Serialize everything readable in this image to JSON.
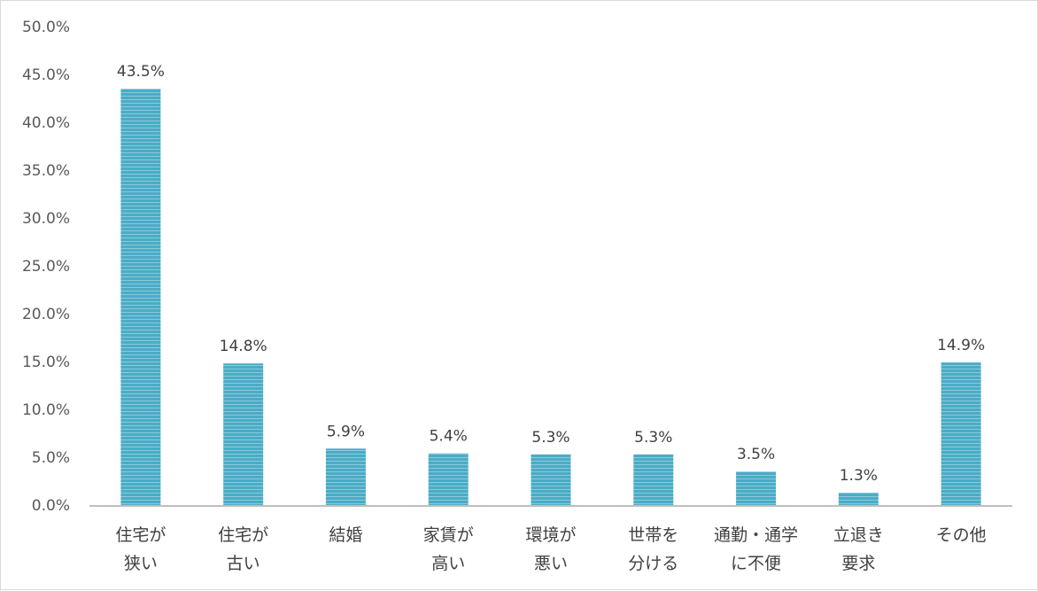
{
  "chart_data": {
    "type": "bar",
    "categories": [
      [
        "住宅が",
        "狭い"
      ],
      [
        "住宅が",
        "古い"
      ],
      [
        "結婚"
      ],
      [
        "家賃が",
        "高い"
      ],
      [
        "環境が",
        "悪い"
      ],
      [
        "世帯を",
        "分ける"
      ],
      [
        "通勤・通学",
        "に不便"
      ],
      [
        "立退き",
        "要求"
      ],
      [
        "その他"
      ]
    ],
    "values": [
      43.5,
      14.8,
      5.9,
      5.4,
      5.3,
      5.3,
      3.5,
      1.3,
      14.9
    ],
    "data_labels": [
      "43.5%",
      "14.8%",
      "5.9%",
      "5.4%",
      "5.3%",
      "5.3%",
      "3.5%",
      "1.3%",
      "14.9%"
    ],
    "y_ticks": [
      "0.0%",
      "5.0%",
      "10.0%",
      "15.0%",
      "20.0%",
      "25.0%",
      "30.0%",
      "35.0%",
      "40.0%",
      "45.0%",
      "50.0%"
    ],
    "ylim": [
      0,
      50
    ],
    "grid": false,
    "bar_color": "#4bacc6",
    "bar_stripe_color": "#ffffff",
    "title": "",
    "xlabel": "",
    "ylabel": ""
  }
}
